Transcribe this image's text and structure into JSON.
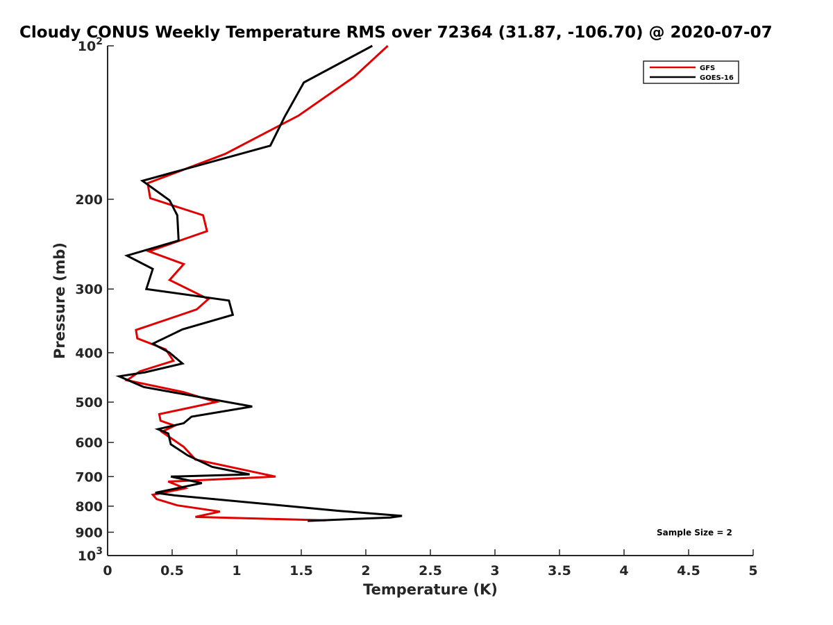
{
  "chart_data": {
    "type": "line",
    "title": "Cloudy CONUS Weekly Temperature RMS over 72364 (31.87, -106.70) @ 2020-07-07",
    "xlabel": "Temperature (K)",
    "ylabel": "Pressure (mb)",
    "xlim": [
      0,
      5
    ],
    "ylim": [
      100,
      1000
    ],
    "y_scale": "log",
    "y_reversed": true,
    "grid": false,
    "legend_position": "top-right",
    "x_ticks": [
      "0",
      "0.5",
      "1",
      "1.5",
      "2",
      "2.5",
      "3",
      "3.5",
      "4",
      "4.5",
      "5"
    ],
    "y_ticks": [
      {
        "value": 100,
        "base": "10",
        "exp": "2"
      },
      {
        "value": 200,
        "label": "200"
      },
      {
        "value": 300,
        "label": "300"
      },
      {
        "value": 400,
        "label": "400"
      },
      {
        "value": 500,
        "label": "500"
      },
      {
        "value": 600,
        "label": "600"
      },
      {
        "value": 700,
        "label": "700"
      },
      {
        "value": 800,
        "label": "800"
      },
      {
        "value": 900,
        "label": "900"
      },
      {
        "value": 1000,
        "base": "10",
        "exp": "3"
      }
    ],
    "annotation": "Sample Size = 2",
    "series": [
      {
        "name": "GFS",
        "color": "#e00000",
        "points": [
          [
            2.17,
            100
          ],
          [
            1.91,
            115
          ],
          [
            1.48,
            137
          ],
          [
            0.91,
            163
          ],
          [
            0.31,
            186
          ],
          [
            0.33,
            199
          ],
          [
            0.74,
            215
          ],
          [
            0.77,
            231
          ],
          [
            0.32,
            253
          ],
          [
            0.59,
            268
          ],
          [
            0.48,
            288
          ],
          [
            0.78,
            314
          ],
          [
            0.69,
            329
          ],
          [
            0.22,
            361
          ],
          [
            0.23,
            375
          ],
          [
            0.45,
            394
          ],
          [
            0.51,
            415
          ],
          [
            0.25,
            435
          ],
          [
            0.15,
            453
          ],
          [
            0.59,
            478
          ],
          [
            0.84,
            500
          ],
          [
            0.4,
            528
          ],
          [
            0.41,
            544
          ],
          [
            0.52,
            556
          ],
          [
            0.42,
            572
          ],
          [
            0.59,
            612
          ],
          [
            0.68,
            648
          ],
          [
            1.3,
            700
          ],
          [
            0.47,
            716
          ],
          [
            0.6,
            738
          ],
          [
            0.35,
            760
          ],
          [
            0.38,
            775
          ],
          [
            0.54,
            797
          ],
          [
            0.87,
            820
          ],
          [
            0.68,
            840
          ],
          [
            1.69,
            853
          ]
        ]
      },
      {
        "name": "GOES-16",
        "color": "#000000",
        "points": [
          [
            2.05,
            100
          ],
          [
            1.52,
            118
          ],
          [
            1.37,
            138
          ],
          [
            1.26,
            157
          ],
          [
            0.27,
            184
          ],
          [
            0.48,
            201
          ],
          [
            0.54,
            215
          ],
          [
            0.55,
            241
          ],
          [
            0.15,
            258
          ],
          [
            0.35,
            274
          ],
          [
            0.3,
            300
          ],
          [
            0.94,
            316
          ],
          [
            0.97,
            337
          ],
          [
            0.58,
            360
          ],
          [
            0.35,
            384
          ],
          [
            0.48,
            400
          ],
          [
            0.58,
            420
          ],
          [
            0.29,
            437
          ],
          [
            0.09,
            445
          ],
          [
            0.28,
            467
          ],
          [
            1.12,
            510
          ],
          [
            0.65,
            534
          ],
          [
            0.59,
            550
          ],
          [
            0.39,
            565
          ],
          [
            0.47,
            576
          ],
          [
            0.49,
            605
          ],
          [
            0.62,
            636
          ],
          [
            0.81,
            670
          ],
          [
            1.1,
            693
          ],
          [
            0.49,
            700
          ],
          [
            0.73,
            721
          ],
          [
            0.37,
            753
          ],
          [
            0.52,
            762
          ],
          [
            1.79,
            817
          ],
          [
            2.28,
            836
          ],
          [
            2.19,
            842
          ],
          [
            1.55,
            855
          ]
        ]
      }
    ]
  }
}
